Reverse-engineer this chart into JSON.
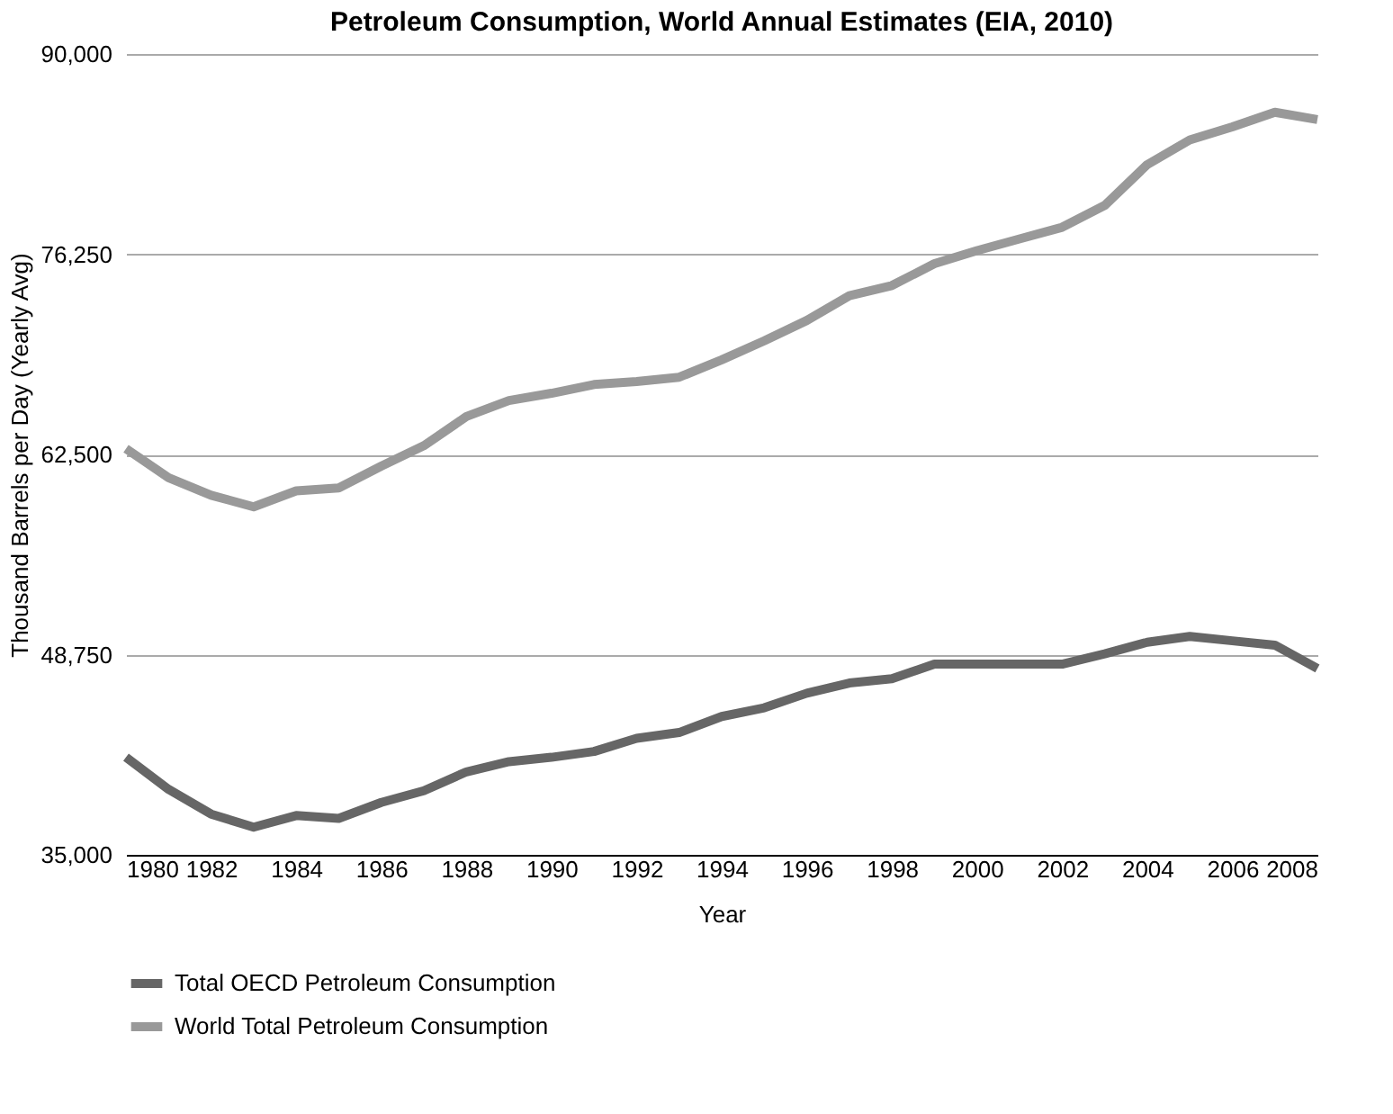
{
  "chart_data": {
    "type": "line",
    "title": "Petroleum Consumption, World Annual Estimates (EIA, 2010)",
    "xlabel": "Year",
    "ylabel": "Thousand Barrels per Day (Yearly Avg)",
    "x": [
      1980,
      1981,
      1982,
      1983,
      1984,
      1985,
      1986,
      1987,
      1988,
      1989,
      1990,
      1991,
      1992,
      1993,
      1994,
      1995,
      1996,
      1997,
      1998,
      1999,
      2000,
      2001,
      2002,
      2003,
      2004,
      2005,
      2006,
      2007,
      2008
    ],
    "series": [
      {
        "name": "Total OECD Petroleum Consumption",
        "color": "#666666",
        "values": [
          41700,
          39500,
          37800,
          36900,
          37700,
          37500,
          38600,
          39400,
          40700,
          41400,
          41700,
          42100,
          43000,
          43400,
          44500,
          45100,
          46100,
          46800,
          47100,
          48100,
          48100,
          48100,
          48100,
          48800,
          49600,
          50000,
          49700,
          49400,
          47800
        ]
      },
      {
        "name": "World Total Petroleum Consumption",
        "color": "#999999",
        "values": [
          62900,
          60900,
          59700,
          58900,
          60000,
          60200,
          61700,
          63100,
          65100,
          66200,
          66700,
          67300,
          67500,
          67800,
          69000,
          70300,
          71700,
          73400,
          74100,
          75600,
          76500,
          77300,
          78100,
          79600,
          82400,
          84100,
          85000,
          86000,
          85500
        ]
      }
    ],
    "xlim": [
      1980,
      2008
    ],
    "xticks": [
      1980,
      1982,
      1984,
      1986,
      1988,
      1990,
      1992,
      1994,
      1996,
      1998,
      2000,
      2002,
      2004,
      2006,
      2008
    ],
    "ylim": [
      35000,
      90000
    ],
    "yticks": [
      {
        "value": 35000,
        "label": "35,000"
      },
      {
        "value": 48750,
        "label": "48,750"
      },
      {
        "value": 62500,
        "label": "62,500"
      },
      {
        "value": 76250,
        "label": "76,250"
      },
      {
        "value": 90000,
        "label": "90,000"
      }
    ],
    "grid": "y",
    "legend": "bottom",
    "marker": "none",
    "line_style": "solid"
  }
}
